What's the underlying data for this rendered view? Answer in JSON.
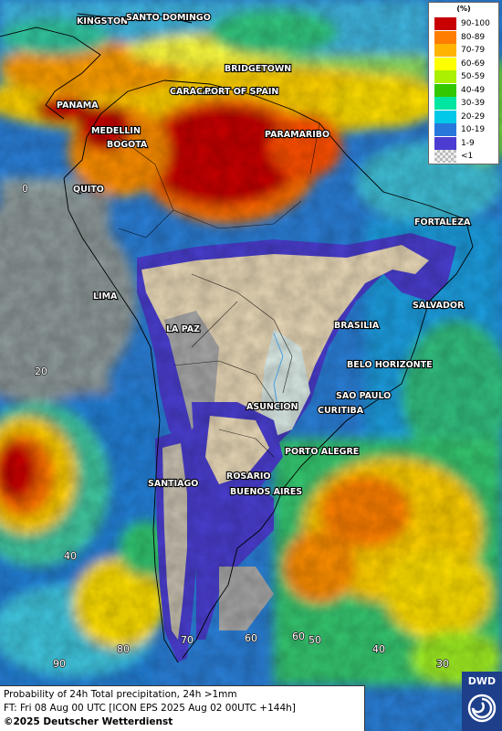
{
  "legend": {
    "unit": "(%)",
    "items": [
      {
        "label": "90-100",
        "color": "#c80000"
      },
      {
        "label": "80-89",
        "color": "#ff7d00"
      },
      {
        "label": "70-79",
        "color": "#ffb400"
      },
      {
        "label": "60-69",
        "color": "#ffff00"
      },
      {
        "label": "50-59",
        "color": "#aaf000"
      },
      {
        "label": "40-49",
        "color": "#32c800"
      },
      {
        "label": "30-39",
        "color": "#00e6a0"
      },
      {
        "label": "20-29",
        "color": "#00c8e6"
      },
      {
        "label": "10-19",
        "color": "#2878dc"
      },
      {
        "label": "1-9",
        "color": "#4c3cd2"
      },
      {
        "label": "<1",
        "color": "#cccccc"
      }
    ]
  },
  "cities": [
    {
      "name": "KINGSTON"
    },
    {
      "name": "SANTO DOMINGO"
    },
    {
      "name": "BRIDGETOWN"
    },
    {
      "name": "CARACAS"
    },
    {
      "name": "PORT OF SPAIN"
    },
    {
      "name": "PANAMA"
    },
    {
      "name": "PARAMARIBO"
    },
    {
      "name": "MEDELLIN"
    },
    {
      "name": "BOGOTA"
    },
    {
      "name": "QUITO"
    },
    {
      "name": "FORTALEZA"
    },
    {
      "name": "LIMA"
    },
    {
      "name": "SALVADOR"
    },
    {
      "name": "LA PAZ"
    },
    {
      "name": "BRASILIA"
    },
    {
      "name": "BELO HORIZONTE"
    },
    {
      "name": "SAO PAULO"
    },
    {
      "name": "ASUNCION"
    },
    {
      "name": "CURITIBA"
    },
    {
      "name": "PORTO ALEGRE"
    },
    {
      "name": "ROSARIO"
    },
    {
      "name": "SANTIAGO"
    },
    {
      "name": "BUENOS AIRES"
    }
  ],
  "grid_labels": {
    "lat": [
      "0",
      "20",
      "40",
      "60"
    ],
    "lon": [
      "90",
      "80",
      "70",
      "60",
      "50",
      "40",
      "30"
    ]
  },
  "caption": {
    "line1": "Probability of 24h Total precipitation, 24h >1mm",
    "line2": "FT: Fri 08 Aug 00 UTC [ICON EPS 2025 Aug 02 00UTC +144h]",
    "line3": "©2025 Deutscher Wetterdienst"
  },
  "logo": {
    "text": "DWD"
  },
  "colors": {
    "land_dry": "#ead9b8",
    "land_gray": "#a8a8a8",
    "ocean_gray": "#8f9a9a"
  }
}
